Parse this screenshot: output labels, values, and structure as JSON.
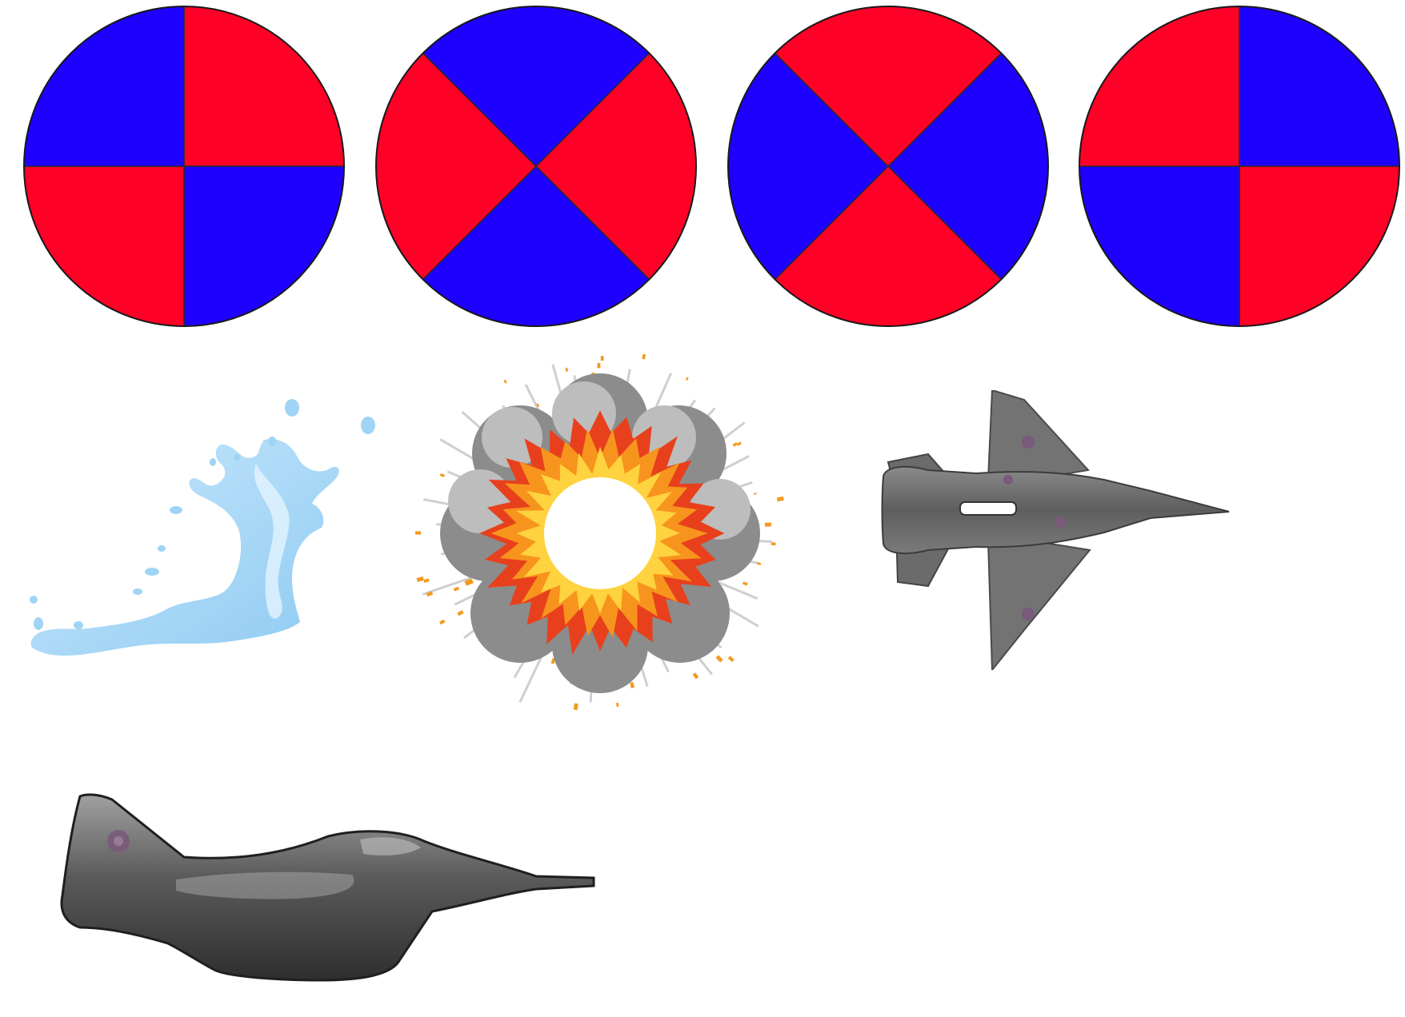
{
  "sprite_sheet": {
    "spinner_frames": [
      {
        "name": "spinner-frame-1",
        "quadrant_colors": [
          "#ff0026",
          "#1e00ff",
          "#ff0026",
          "#1e00ff"
        ],
        "rotation_deg": 0
      },
      {
        "name": "spinner-frame-2",
        "quadrant_colors": [
          "#ff0026",
          "#1e00ff",
          "#ff0026",
          "#1e00ff"
        ],
        "rotation_deg": 45
      },
      {
        "name": "spinner-frame-3",
        "quadrant_colors": [
          "#1e00ff",
          "#ff0026",
          "#1e00ff",
          "#ff0026"
        ],
        "rotation_deg": 45
      },
      {
        "name": "spinner-frame-4",
        "quadrant_colors": [
          "#1e00ff",
          "#ff0026",
          "#1e00ff",
          "#ff0026"
        ],
        "rotation_deg": 0
      }
    ],
    "effects": [
      {
        "name": "water-splash-icon",
        "color": "#a9d8f7"
      },
      {
        "name": "explosion-icon",
        "colors": [
          "#f7941d",
          "#ffd23f",
          "#e8401c",
          "#9e9e9e"
        ]
      }
    ],
    "aircraft": [
      {
        "name": "jet-top-view-icon",
        "color": "#6e6e6e"
      },
      {
        "name": "jet-side-view-icon",
        "color": "#5a5a5a"
      }
    ]
  }
}
